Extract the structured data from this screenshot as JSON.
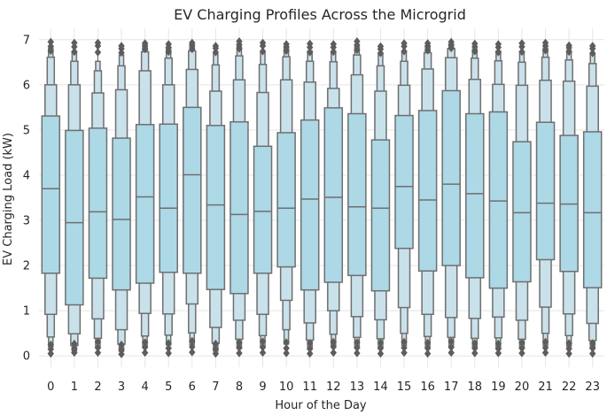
{
  "chart_data": {
    "type": "boxen",
    "title": "EV Charging Profiles Across the Microgrid",
    "xlabel": "Hour of the Day",
    "ylabel": "EV Charging Load (kW)",
    "ylim": [
      -0.25,
      7.25
    ],
    "yticks": [
      0,
      1,
      2,
      3,
      4,
      5,
      6,
      7
    ],
    "grid": true,
    "colors": {
      "box_fill": "#add8e6",
      "box_edge": "#6f6f6f",
      "grid": "#e5e5e5",
      "background": "#ffffff",
      "outlier": "#5d5d5d"
    },
    "categories": [
      "0",
      "1",
      "2",
      "3",
      "4",
      "5",
      "6",
      "7",
      "8",
      "9",
      "10",
      "11",
      "12",
      "13",
      "14",
      "15",
      "16",
      "17",
      "18",
      "19",
      "20",
      "21",
      "22",
      "23"
    ],
    "series": [
      {
        "hour": "0",
        "median": 3.7,
        "levels": [
          [
            1.83,
            5.31
          ],
          [
            0.92,
            6.0
          ],
          [
            0.42,
            6.61
          ],
          [
            0.2,
            6.81
          ]
        ],
        "whiskers": [
          0.05,
          6.95
        ],
        "outliers": [
          0.05,
          0.15,
          0.25,
          6.75,
          6.85,
          6.95
        ]
      },
      {
        "hour": "1",
        "median": 2.95,
        "levels": [
          [
            1.13,
            4.99
          ],
          [
            0.49,
            6.0
          ],
          [
            0.23,
            6.52
          ],
          [
            0.11,
            6.74
          ]
        ],
        "whiskers": [
          0.07,
          6.93
        ],
        "outliers": [
          0.07,
          0.16,
          0.27,
          6.73,
          6.84,
          6.93
        ]
      },
      {
        "hour": "2",
        "median": 3.19,
        "levels": [
          [
            1.72,
            5.04
          ],
          [
            0.82,
            5.82
          ],
          [
            0.39,
            6.31
          ],
          [
            0.18,
            6.52
          ]
        ],
        "whiskers": [
          0.07,
          6.93
        ],
        "outliers": [
          0.07,
          0.18,
          0.31,
          6.72,
          6.86,
          6.93
        ]
      },
      {
        "hour": "3",
        "median": 3.02,
        "levels": [
          [
            1.46,
            4.82
          ],
          [
            0.58,
            5.89
          ],
          [
            0.26,
            6.42
          ],
          [
            0.1,
            6.66
          ]
        ],
        "whiskers": [
          0.04,
          6.86
        ],
        "outliers": [
          0.04,
          0.14,
          0.25,
          6.71,
          6.8,
          6.86
        ]
      },
      {
        "hour": "4",
        "median": 3.52,
        "levels": [
          [
            1.61,
            5.12
          ],
          [
            0.94,
            6.31
          ],
          [
            0.44,
            6.73
          ],
          [
            0.2,
            6.86
          ]
        ],
        "whiskers": [
          0.07,
          6.92
        ],
        "outliers": [
          0.07,
          0.19,
          0.3,
          6.79,
          6.87,
          6.92
        ]
      },
      {
        "hour": "5",
        "median": 3.27,
        "levels": [
          [
            1.85,
            5.13
          ],
          [
            0.93,
            6.0
          ],
          [
            0.46,
            6.59
          ],
          [
            0.24,
            6.8
          ]
        ],
        "whiskers": [
          0.06,
          6.9
        ],
        "outliers": [
          0.06,
          0.17,
          0.28,
          6.73,
          6.83,
          6.9
        ]
      },
      {
        "hour": "6",
        "median": 4.01,
        "levels": [
          [
            1.83,
            5.5
          ],
          [
            1.15,
            6.34
          ],
          [
            0.51,
            6.75
          ],
          [
            0.25,
            6.86
          ]
        ],
        "whiskers": [
          0.08,
          6.93
        ],
        "outliers": [
          0.08,
          0.2,
          0.33,
          6.79,
          6.88,
          6.93
        ]
      },
      {
        "hour": "7",
        "median": 3.34,
        "levels": [
          [
            1.47,
            5.1
          ],
          [
            0.63,
            5.86
          ],
          [
            0.28,
            6.44
          ],
          [
            0.11,
            6.68
          ]
        ],
        "whiskers": [
          0.05,
          6.86
        ],
        "outliers": [
          0.05,
          0.15,
          0.27,
          6.72,
          6.81,
          6.86
        ]
      },
      {
        "hour": "8",
        "median": 3.13,
        "levels": [
          [
            1.38,
            5.18
          ],
          [
            0.79,
            6.11
          ],
          [
            0.37,
            6.64
          ],
          [
            0.17,
            6.85
          ]
        ],
        "whiskers": [
          0.06,
          6.96
        ],
        "outliers": [
          0.06,
          0.18,
          0.29,
          6.8,
          6.89,
          6.96
        ]
      },
      {
        "hour": "9",
        "median": 3.2,
        "levels": [
          [
            1.83,
            4.64
          ],
          [
            0.92,
            5.83
          ],
          [
            0.45,
            6.45
          ],
          [
            0.21,
            6.71
          ]
        ],
        "whiskers": [
          0.07,
          6.93
        ],
        "outliers": [
          0.07,
          0.19,
          0.32,
          6.74,
          6.86,
          6.93
        ]
      },
      {
        "hour": "10",
        "median": 3.27,
        "levels": [
          [
            1.97,
            4.94
          ],
          [
            1.23,
            6.11
          ],
          [
            0.58,
            6.62
          ],
          [
            0.26,
            6.82
          ]
        ],
        "whiskers": [
          0.06,
          6.9
        ],
        "outliers": [
          0.06,
          0.17,
          0.3,
          6.75,
          6.84,
          6.9
        ]
      },
      {
        "hour": "11",
        "median": 3.47,
        "levels": [
          [
            1.46,
            5.22
          ],
          [
            0.73,
            6.06
          ],
          [
            0.35,
            6.52
          ],
          [
            0.15,
            6.75
          ]
        ],
        "whiskers": [
          0.05,
          6.91
        ],
        "outliers": [
          0.05,
          0.16,
          0.28,
          6.72,
          6.83,
          6.91
        ]
      },
      {
        "hour": "12",
        "median": 3.51,
        "levels": [
          [
            1.63,
            5.49
          ],
          [
            1.0,
            5.92
          ],
          [
            0.48,
            6.51
          ],
          [
            0.22,
            6.73
          ]
        ],
        "whiskers": [
          0.07,
          6.9
        ],
        "outliers": [
          0.07,
          0.2,
          0.31,
          6.73,
          6.83,
          6.9
        ]
      },
      {
        "hour": "13",
        "median": 3.3,
        "levels": [
          [
            1.78,
            5.36
          ],
          [
            0.87,
            6.22
          ],
          [
            0.41,
            6.66
          ],
          [
            0.18,
            6.84
          ]
        ],
        "whiskers": [
          0.06,
          6.96
        ],
        "outliers": [
          0.06,
          0.18,
          0.3,
          6.77,
          6.88,
          6.96
        ]
      },
      {
        "hour": "14",
        "median": 3.27,
        "levels": [
          [
            1.44,
            4.78
          ],
          [
            0.8,
            5.86
          ],
          [
            0.38,
            6.42
          ],
          [
            0.17,
            6.68
          ]
        ],
        "whiskers": [
          0.05,
          6.85
        ],
        "outliers": [
          0.05,
          0.17,
          0.29,
          6.7,
          6.79,
          6.85
        ]
      },
      {
        "hour": "15",
        "median": 3.75,
        "levels": [
          [
            2.38,
            5.32
          ],
          [
            1.07,
            5.99
          ],
          [
            0.5,
            6.52
          ],
          [
            0.23,
            6.73
          ]
        ],
        "whiskers": [
          0.07,
          6.92
        ],
        "outliers": [
          0.07,
          0.18,
          0.31,
          6.74,
          6.85,
          6.92
        ]
      },
      {
        "hour": "16",
        "median": 3.45,
        "levels": [
          [
            1.88,
            5.43
          ],
          [
            0.92,
            6.35
          ],
          [
            0.43,
            6.71
          ],
          [
            0.2,
            6.84
          ]
        ],
        "whiskers": [
          0.05,
          6.92
        ],
        "outliers": [
          0.05,
          0.17,
          0.29,
          6.76,
          6.86,
          6.92
        ]
      },
      {
        "hour": "17",
        "median": 3.8,
        "levels": [
          [
            2.0,
            5.87
          ],
          [
            0.85,
            6.6
          ],
          [
            0.41,
            6.8
          ],
          [
            0.19,
            6.89
          ]
        ],
        "whiskers": [
          0.07,
          6.95
        ],
        "outliers": [
          0.07,
          0.19,
          0.32,
          6.81,
          6.89,
          6.95
        ]
      },
      {
        "hour": "18",
        "median": 3.59,
        "levels": [
          [
            1.73,
            5.36
          ],
          [
            0.83,
            6.12
          ],
          [
            0.39,
            6.59
          ],
          [
            0.18,
            6.79
          ]
        ],
        "whiskers": [
          0.06,
          6.91
        ],
        "outliers": [
          0.06,
          0.17,
          0.28,
          6.74,
          6.84,
          6.91
        ]
      },
      {
        "hour": "19",
        "median": 3.43,
        "levels": [
          [
            1.5,
            5.4
          ],
          [
            0.86,
            6.01
          ],
          [
            0.4,
            6.53
          ],
          [
            0.18,
            6.75
          ]
        ],
        "whiskers": [
          0.06,
          6.9
        ],
        "outliers": [
          0.06,
          0.16,
          0.27,
          6.72,
          6.83,
          6.9
        ]
      },
      {
        "hour": "20",
        "median": 3.17,
        "levels": [
          [
            1.64,
            4.74
          ],
          [
            0.79,
            5.99
          ],
          [
            0.37,
            6.5
          ],
          [
            0.17,
            6.72
          ]
        ],
        "whiskers": [
          0.06,
          6.92
        ],
        "outliers": [
          0.06,
          0.17,
          0.29,
          6.73,
          6.84,
          6.92
        ]
      },
      {
        "hour": "21",
        "median": 3.38,
        "levels": [
          [
            2.13,
            5.17
          ],
          [
            1.08,
            6.1
          ],
          [
            0.5,
            6.61
          ],
          [
            0.23,
            6.81
          ]
        ],
        "whiskers": [
          0.07,
          6.93
        ],
        "outliers": [
          0.07,
          0.18,
          0.31,
          6.76,
          6.86,
          6.93
        ]
      },
      {
        "hour": "22",
        "median": 3.36,
        "levels": [
          [
            1.87,
            4.88
          ],
          [
            0.93,
            6.08
          ],
          [
            0.45,
            6.55
          ],
          [
            0.21,
            6.76
          ]
        ],
        "whiskers": [
          0.05,
          6.87
        ],
        "outliers": [
          0.05,
          0.16,
          0.28,
          6.73,
          6.82,
          6.87
        ]
      },
      {
        "hour": "23",
        "median": 3.17,
        "levels": [
          [
            1.51,
            4.96
          ],
          [
            0.72,
            5.97
          ],
          [
            0.34,
            6.47
          ],
          [
            0.16,
            6.7
          ]
        ],
        "whiskers": [
          0.05,
          6.86
        ],
        "outliers": [
          0.05,
          0.17,
          0.28,
          6.7,
          6.8,
          6.86
        ]
      }
    ]
  }
}
